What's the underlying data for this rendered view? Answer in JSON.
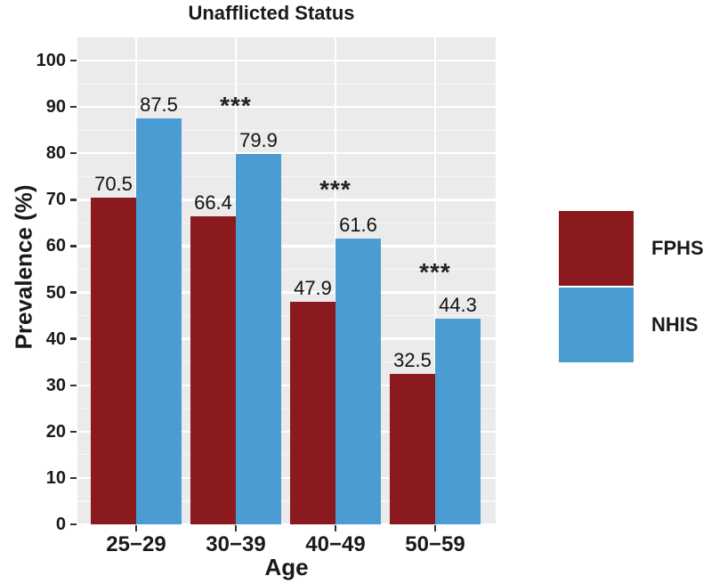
{
  "figure": {
    "title": "Unafflicted Status",
    "x_axis": {
      "title": "Age",
      "tick_labels": [
        "25−29",
        "30−39",
        "40−49",
        "50−59"
      ]
    },
    "y_axis": {
      "title": "Prevalence (%)",
      "tick_labels": [
        "0",
        "10",
        "20",
        "30",
        "40",
        "50",
        "60",
        "70",
        "80",
        "90",
        "100"
      ]
    },
    "legend": {
      "items": [
        {
          "label": "FPHS",
          "color": "#8A1A1D"
        },
        {
          "label": "NHIS",
          "color": "#4A9CD3"
        }
      ]
    }
  },
  "chart_data": {
    "type": "bar",
    "title": "Unafflicted Status",
    "xlabel": "Age",
    "ylabel": "Prevalence (%)",
    "categories": [
      "25−29",
      "30−39",
      "40−49",
      "50−59"
    ],
    "series": [
      {
        "name": "FPHS",
        "color": "#8A1A1D",
        "values": [
          70.5,
          66.4,
          47.9,
          32.5
        ]
      },
      {
        "name": "NHIS",
        "color": "#4A9CD3",
        "values": [
          87.5,
          79.9,
          61.6,
          44.3
        ]
      }
    ],
    "bar_value_labels": [
      "70.5",
      "66.4",
      "47.9",
      "32.5",
      "87.5",
      "79.9",
      "61.6",
      "44.3"
    ],
    "annotations": [
      {
        "category": "30−39",
        "text": "***",
        "y": 92
      },
      {
        "category": "40−49",
        "text": "***",
        "y": 74
      },
      {
        "category": "50−59",
        "text": "***",
        "y": 56
      }
    ],
    "ylim": [
      0,
      105
    ],
    "y_major_ticks": [
      0,
      10,
      20,
      30,
      40,
      50,
      60,
      70,
      80,
      90,
      100
    ],
    "y_minor_ticks": [
      5,
      15,
      25,
      35,
      45,
      55,
      65,
      75,
      85,
      95
    ],
    "grid": "horizontal major+minor; vertical major at category centers",
    "legend_position": "right",
    "colors": {
      "panel_background": "#EBEBEB",
      "grid_major": "#FFFFFF",
      "grid_minor": "#F7F7F7",
      "tick": "#333333",
      "text": "#1a1a1a"
    }
  }
}
